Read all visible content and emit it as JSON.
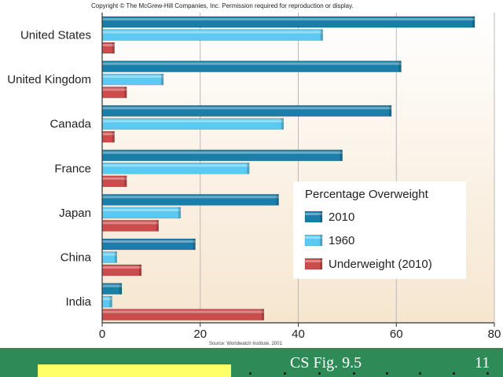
{
  "copyright": "Copyright © The McGrew-Hill Companies, Inc. Permission required for reproduction or display.",
  "source_note": "Source: Worldwatch Institute, 2001",
  "footer": {
    "caption": "CS Fig. 9.5",
    "page_number": "11"
  },
  "colors": {
    "series_2010": "#1a7fa8",
    "series_1960": "#5ccaf0",
    "series_underweight": "#cc4b4b",
    "plot_background_top": "#ffffff",
    "plot_background_bottom": "#f6e6cf",
    "footer_background": "#2e8b57",
    "footer_highlight": "#ffff66"
  },
  "chart_data": {
    "type": "bar",
    "orientation": "horizontal",
    "title": "",
    "xlabel": "",
    "ylabel": "",
    "categories": [
      "United States",
      "United Kingdom",
      "Canada",
      "France",
      "Japan",
      "China",
      "India"
    ],
    "series": [
      {
        "name": "2010",
        "values": [
          76,
          61,
          59,
          49,
          36,
          19,
          4
        ]
      },
      {
        "name": "1960",
        "values": [
          45,
          12.5,
          37,
          30,
          16,
          3,
          2
        ]
      },
      {
        "name": "Underweight (2010)",
        "values": [
          2.5,
          5,
          2.5,
          5,
          11.5,
          8,
          33
        ]
      }
    ],
    "xlim": [
      0,
      80
    ],
    "xticks": [
      0,
      20,
      40,
      60,
      80
    ],
    "grid": "vertical",
    "legend": {
      "title": "Percentage Overweight",
      "placement": "lower-right",
      "entries": [
        "2010",
        "1960",
        "Underweight (2010)"
      ]
    }
  }
}
